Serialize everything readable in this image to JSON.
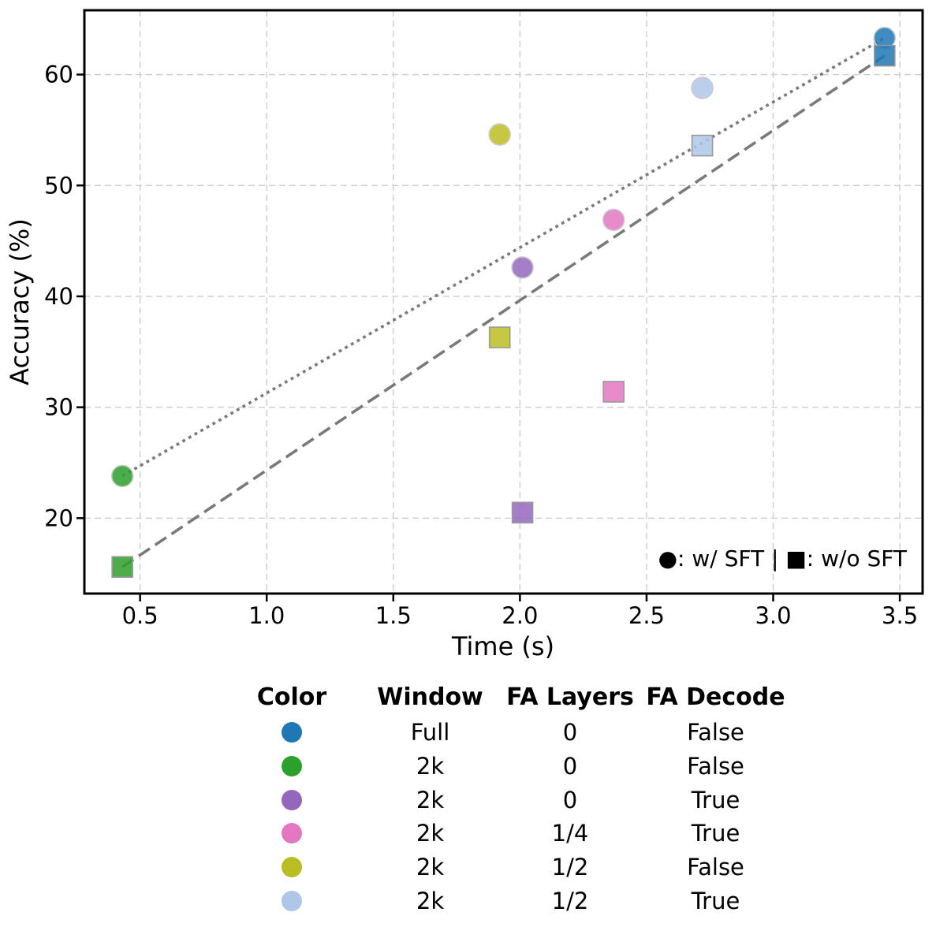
{
  "chart_data": {
    "type": "scatter",
    "xlabel": "Time (s)",
    "ylabel": "Accuracy (%)",
    "xlim": [
      0.28,
      3.59
    ],
    "ylim": [
      13.2,
      65.8
    ],
    "xticks": [
      0.5,
      1.0,
      1.5,
      2.0,
      2.5,
      3.0,
      3.5
    ],
    "yticks": [
      20,
      30,
      40,
      50,
      60
    ],
    "grid": true,
    "annotation_text": "●: w/ SFT | ■:  w/o SFT",
    "marker_legend": {
      "circle": "w/ SFT",
      "square": "w/o SFT"
    },
    "series": [
      {
        "name": "window-full-fa0-decode-false",
        "color": "#1f77b4",
        "circle": {
          "x": 3.44,
          "y": 63.3
        },
        "square": {
          "x": 3.44,
          "y": 61.7
        }
      },
      {
        "name": "window-2k-fa0-decode-false",
        "color": "#2ca02c",
        "circle": {
          "x": 0.43,
          "y": 23.8
        },
        "square": {
          "x": 0.43,
          "y": 15.6
        }
      },
      {
        "name": "window-2k-fa0-decode-true",
        "color": "#9467bd",
        "circle": {
          "x": 2.01,
          "y": 42.6
        },
        "square": {
          "x": 2.01,
          "y": 20.5
        }
      },
      {
        "name": "window-2k-fa1-4-decode-true",
        "color": "#e377c2",
        "circle": {
          "x": 2.37,
          "y": 46.9
        },
        "square": {
          "x": 2.37,
          "y": 31.4
        }
      },
      {
        "name": "window-2k-fa1-2-decode-false",
        "color": "#bcbd22",
        "circle": {
          "x": 1.92,
          "y": 54.6
        },
        "square": {
          "x": 1.92,
          "y": 36.3
        }
      },
      {
        "name": "window-2k-fa1-2-decode-true",
        "color": "#aec7e8",
        "circle": {
          "x": 2.72,
          "y": 58.8
        },
        "square": {
          "x": 2.72,
          "y": 53.6
        }
      }
    ],
    "trend_lines": [
      {
        "style": "dotted",
        "from": {
          "x": 0.43,
          "y": 23.8
        },
        "to": {
          "x": 3.44,
          "y": 63.3
        }
      },
      {
        "style": "dashed",
        "from": {
          "x": 0.43,
          "y": 15.6
        },
        "to": {
          "x": 3.44,
          "y": 61.7
        }
      }
    ],
    "style": {
      "grid_color": "#d0d0d0",
      "line_color": "#7a7a7a",
      "axis_color": "#000000",
      "circle_edge": "#cccccc",
      "square_edge": "#999999",
      "fill_opacity": 0.85
    }
  },
  "table": {
    "headers": [
      "Color",
      "Window",
      "FA Layers",
      "FA Decode"
    ],
    "rows": [
      {
        "color": "#1f77b4",
        "window": "Full",
        "fa_layers": "0",
        "fa_decode": "False"
      },
      {
        "color": "#2ca02c",
        "window": "2k",
        "fa_layers": "0",
        "fa_decode": "False"
      },
      {
        "color": "#9467bd",
        "window": "2k",
        "fa_layers": "0",
        "fa_decode": "True"
      },
      {
        "color": "#e377c2",
        "window": "2k",
        "fa_layers": "1/4",
        "fa_decode": "True"
      },
      {
        "color": "#bcbd22",
        "window": "2k",
        "fa_layers": "1/2",
        "fa_decode": "False"
      },
      {
        "color": "#aec7e8",
        "window": "2k",
        "fa_layers": "1/2",
        "fa_decode": "True"
      }
    ]
  }
}
